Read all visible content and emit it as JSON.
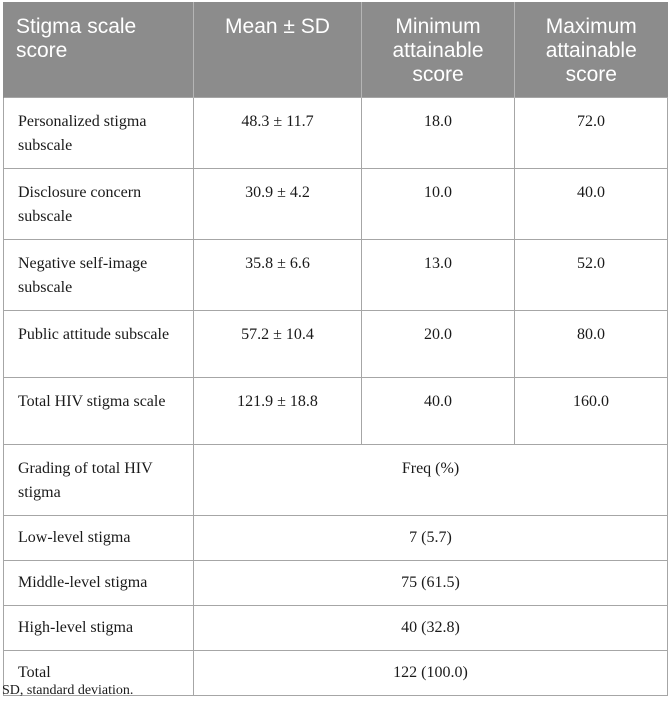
{
  "table": {
    "headers": [
      "Stigma scale score",
      "Mean ± SD",
      "Minimum attainable score",
      "Maximum attainable score"
    ],
    "score_rows": [
      {
        "label": "Personalized stigma subscale",
        "mean_sd": "48.3 ± 11.7",
        "min": "18.0",
        "max": "72.0"
      },
      {
        "label": "Disclosure concern subscale",
        "mean_sd": "30.9 ± 4.2",
        "min": "10.0",
        "max": "40.0"
      },
      {
        "label": "Negative self-image subscale",
        "mean_sd": "35.8 ± 6.6",
        "min": "13.0",
        "max": "52.0"
      },
      {
        "label": "Public attitude subscale",
        "mean_sd": "57.2 ± 10.4",
        "min": "20.0",
        "max": "80.0"
      },
      {
        "label": "Total HIV stigma scale",
        "mean_sd": "121.9 ± 18.8",
        "min": "40.0",
        "max": "160.0"
      }
    ],
    "grading_header": {
      "label": "Grading of total HIV stigma",
      "value": "Freq (%)"
    },
    "grading_rows": [
      {
        "label": "Low-level stigma",
        "value": "7 (5.7)"
      },
      {
        "label": "Middle-level stigma",
        "value": "75 (61.5)"
      },
      {
        "label": "High-level stigma",
        "value": "40 (32.8)"
      },
      {
        "label": "Total",
        "value": "122 (100.0)"
      }
    ]
  },
  "footnote": "SD, standard deviation."
}
